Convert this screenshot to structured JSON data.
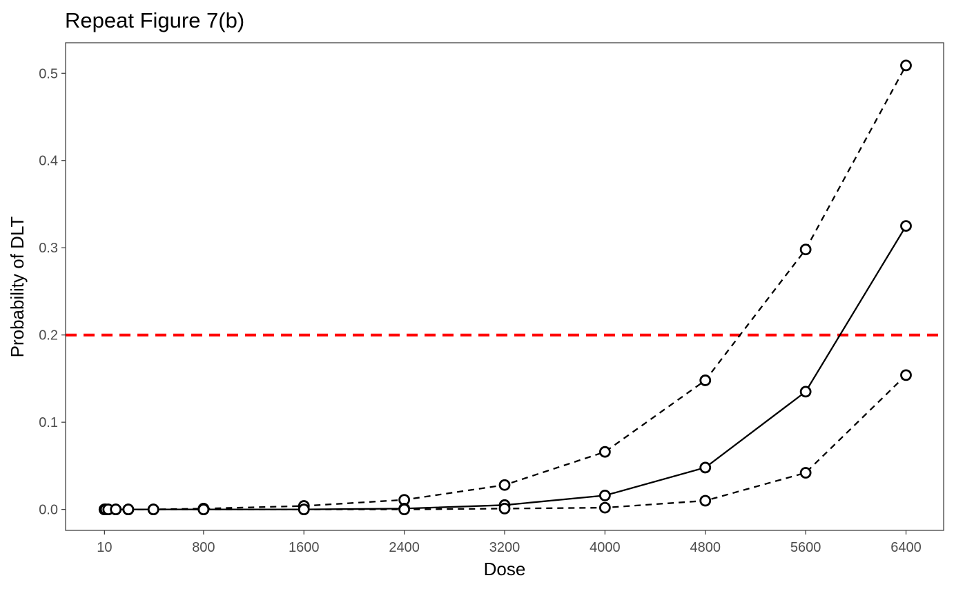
{
  "chart_data": {
    "type": "line",
    "title": "Repeat Figure 7(b)",
    "xlabel": "Dose",
    "ylabel": "Probability of DLT",
    "x_ticks": [
      10,
      800,
      1600,
      2400,
      3200,
      4000,
      4800,
      5600,
      6400
    ],
    "y_ticks": [
      0.0,
      0.1,
      0.2,
      0.3,
      0.4,
      0.5
    ],
    "y_tick_labels": [
      "0.0",
      "0.1",
      "0.2",
      "0.3",
      "0.4",
      "0.5"
    ],
    "xlim": [
      -300,
      6700
    ],
    "ylim": [
      -0.024,
      0.535
    ],
    "grid": false,
    "x": [
      10,
      20,
      40,
      100,
      200,
      400,
      800,
      1600,
      2400,
      3200,
      4000,
      4800,
      5600,
      6400
    ],
    "series": [
      {
        "style": "dashed",
        "color": "#000000",
        "values": [
          0.0,
          0.0,
          0.0,
          0.0,
          0.0,
          0.0,
          0.001,
          0.004,
          0.011,
          0.028,
          0.066,
          0.148,
          0.298,
          0.509
        ]
      },
      {
        "style": "solid",
        "color": "#000000",
        "values": [
          0.0,
          0.0,
          0.0,
          0.0,
          0.0,
          0.0,
          0.0,
          0.0,
          0.001,
          0.005,
          0.016,
          0.048,
          0.135,
          0.325
        ]
      },
      {
        "style": "dashed",
        "color": "#000000",
        "values": [
          0.0,
          0.0,
          0.0,
          0.0,
          0.0,
          0.0,
          0.0,
          0.0,
          0.0,
          0.001,
          0.002,
          0.01,
          0.042,
          0.154
        ]
      }
    ],
    "reference_line": {
      "y": 0.2,
      "color": "#ff0000",
      "style": "dashed"
    }
  }
}
